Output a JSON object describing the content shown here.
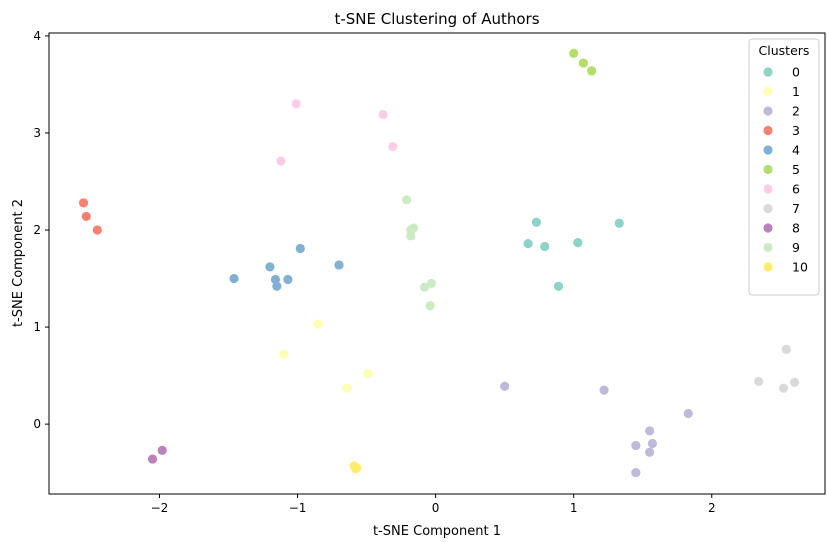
{
  "chart_data": {
    "type": "scatter",
    "title": "t-SNE Clustering of Authors",
    "xlabel": "t-SNE Component 1",
    "ylabel": "t-SNE Component 2",
    "xlim": [
      -2.8,
      2.82
    ],
    "ylim": [
      -0.72,
      4.03
    ],
    "xticks": [
      -2,
      -1,
      0,
      1,
      2
    ],
    "yticks": [
      0,
      1,
      2,
      3,
      4
    ],
    "grid": false,
    "legend": {
      "title": "Clusters",
      "placement": "top-right"
    },
    "series": [
      {
        "name": "0",
        "color": "#8dd3c7",
        "points": [
          [
            0.73,
            2.08
          ],
          [
            0.67,
            1.86
          ],
          [
            0.79,
            1.83
          ],
          [
            1.03,
            1.87
          ],
          [
            1.33,
            2.07
          ],
          [
            0.89,
            1.42
          ]
        ]
      },
      {
        "name": "1",
        "color": "#ffffb3",
        "points": [
          [
            -0.85,
            1.03
          ],
          [
            -1.1,
            0.72
          ],
          [
            -0.64,
            0.37
          ],
          [
            -0.49,
            0.52
          ]
        ]
      },
      {
        "name": "2",
        "color": "#bebada",
        "points": [
          [
            0.5,
            0.39
          ],
          [
            1.22,
            0.35
          ],
          [
            1.83,
            0.11
          ],
          [
            1.55,
            -0.07
          ],
          [
            1.57,
            -0.2
          ],
          [
            1.45,
            -0.22
          ],
          [
            1.55,
            -0.29
          ],
          [
            1.45,
            -0.5
          ]
        ]
      },
      {
        "name": "3",
        "color": "#fb8072",
        "points": [
          [
            -2.55,
            2.28
          ],
          [
            -2.53,
            2.14
          ],
          [
            -2.45,
            2.0
          ]
        ]
      },
      {
        "name": "4",
        "color": "#80b1d3",
        "points": [
          [
            -1.46,
            1.5
          ],
          [
            -1.2,
            1.62
          ],
          [
            -1.16,
            1.49
          ],
          [
            -1.15,
            1.42
          ],
          [
            -1.07,
            1.49
          ],
          [
            -0.98,
            1.81
          ],
          [
            -0.7,
            1.64
          ]
        ]
      },
      {
        "name": "5",
        "color": "#b3de69",
        "points": [
          [
            1.0,
            3.82
          ],
          [
            1.07,
            3.72
          ],
          [
            1.13,
            3.64
          ]
        ]
      },
      {
        "name": "6",
        "color": "#fccde5",
        "points": [
          [
            -1.01,
            3.3
          ],
          [
            -0.38,
            3.19
          ],
          [
            -1.12,
            2.71
          ],
          [
            -0.31,
            2.86
          ]
        ]
      },
      {
        "name": "7",
        "color": "#d9d9d9",
        "points": [
          [
            2.54,
            0.77
          ],
          [
            2.34,
            0.44
          ],
          [
            2.52,
            0.37
          ],
          [
            2.6,
            0.43
          ]
        ]
      },
      {
        "name": "8",
        "color": "#bc80bd",
        "points": [
          [
            -1.98,
            -0.27
          ],
          [
            -2.05,
            -0.36
          ]
        ]
      },
      {
        "name": "9",
        "color": "#ccebc5",
        "points": [
          [
            -0.21,
            2.31
          ],
          [
            -0.16,
            2.02
          ],
          [
            -0.18,
            2.0
          ],
          [
            -0.18,
            1.94
          ],
          [
            -0.03,
            1.45
          ],
          [
            -0.08,
            1.41
          ],
          [
            -0.04,
            1.22
          ]
        ]
      },
      {
        "name": "10",
        "color": "#ffed6f",
        "points": [
          [
            -0.59,
            -0.43
          ],
          [
            -0.58,
            -0.46
          ],
          [
            -0.57,
            -0.45
          ]
        ]
      }
    ]
  }
}
